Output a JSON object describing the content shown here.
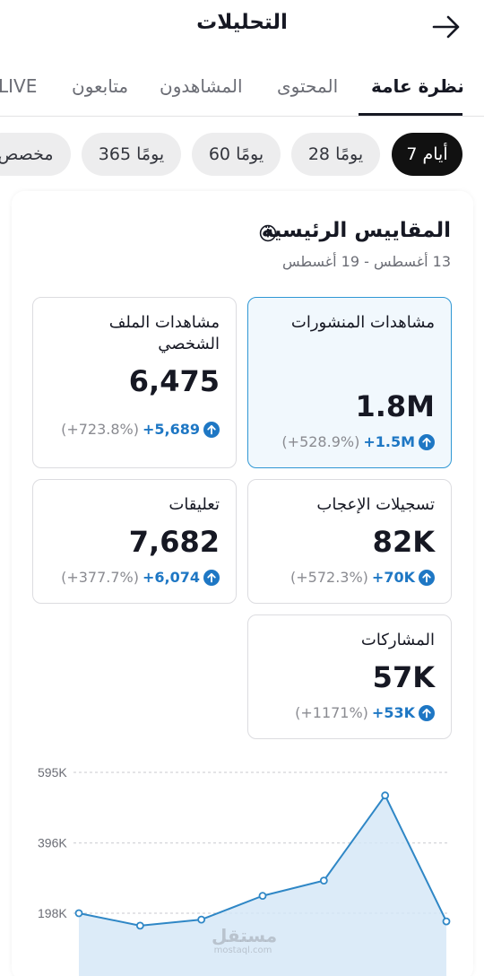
{
  "header": {
    "title": "التحليلات",
    "back_icon": "arrow-right-icon"
  },
  "tabs": [
    {
      "label": "نظرة عامة",
      "active": true
    },
    {
      "label": "المحتوى",
      "active": false
    },
    {
      "label": "المشاهدون",
      "active": false
    },
    {
      "label": "متابعون",
      "active": false
    },
    {
      "label": "LIVE",
      "active": false
    }
  ],
  "ranges": [
    {
      "label": "7 أيام",
      "active": true
    },
    {
      "label": "28 يومًا",
      "active": false
    },
    {
      "label": "60 يومًا",
      "active": false
    },
    {
      "label": "365 يومًا",
      "active": false
    },
    {
      "label": "مخصص",
      "active": false
    }
  ],
  "key_metrics": {
    "title": "المقاييس الرئيسية",
    "date_range": "13 أغسطس - 19 أغسطس",
    "items": [
      {
        "label": "مشاهدات المنشورات",
        "value": "1.8M",
        "delta": "+1.5M",
        "pct": "(+528.9%)",
        "selected": true
      },
      {
        "label": "مشاهدات الملف الشخصي",
        "value": "6,475",
        "delta": "+5,689",
        "pct": "(+723.8%)",
        "selected": false
      },
      {
        "label": "تسجيلات الإعجاب",
        "value": "82K",
        "delta": "+70K",
        "pct": "(+572.3%)",
        "selected": false
      },
      {
        "label": "تعليقات",
        "value": "7,682",
        "delta": "+6,074",
        "pct": "(+377.7%)",
        "selected": false
      },
      {
        "label": "المشاركات",
        "value": "57K",
        "delta": "+53K",
        "pct": "(+1171%)",
        "selected": false
      }
    ]
  },
  "chart_data": {
    "type": "area",
    "y_ticks": [
      {
        "value": 198000,
        "label": "198K"
      },
      {
        "value": 396000,
        "label": "396K"
      },
      {
        "value": 595000,
        "label": "595K"
      }
    ],
    "ylim": [
      0,
      595000
    ],
    "values": [
      198000,
      163000,
      180000,
      247000,
      290000,
      530000,
      175000
    ],
    "grid": true,
    "line_color": "#2f87c6",
    "fill_color": "#d3e6f6"
  },
  "watermark": {
    "arabic": "مستقل",
    "latin": "mostaql.com"
  },
  "colors": {
    "accent": "#1e77c4",
    "selected_border": "#2f97d4",
    "selected_bg": "#f1f8fd"
  }
}
